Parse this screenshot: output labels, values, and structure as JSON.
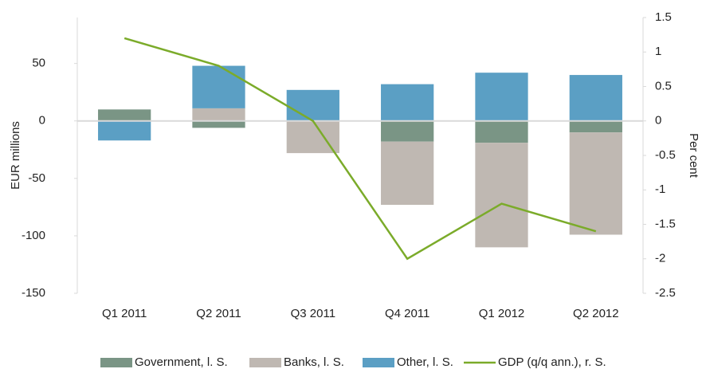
{
  "chart_data": {
    "type": "bar",
    "categories": [
      "Q1 2011",
      "Q2 2011",
      "Q3 2011",
      "Q4 2011",
      "Q1 2012",
      "Q2 2012"
    ],
    "series": [
      {
        "name": "Government, l. S.",
        "color": "#7a9585",
        "values": [
          10,
          -6,
          0,
          -18,
          -19,
          -10
        ]
      },
      {
        "name": "Banks, l. S.",
        "color": "#bfb8b2",
        "values": [
          0,
          11,
          -28,
          -55,
          -91,
          -89
        ]
      },
      {
        "name": "Other, l. S.",
        "color": "#5b9fc4",
        "values": [
          -17,
          37,
          27,
          32,
          42,
          40
        ]
      },
      {
        "name": "GDP (q/q ann.), r. S.",
        "color": "#7bab2a",
        "type": "line",
        "axis": "y2",
        "values": [
          1.2,
          0.8,
          0,
          -2,
          -1.2,
          -1.6
        ]
      }
    ],
    "ylabel": "EUR millions",
    "y2label": "Per cent",
    "ylim": [
      -150,
      90
    ],
    "yticks": [
      -150,
      -100,
      -50,
      0,
      50
    ],
    "y2lim": [
      -2.5,
      1.5
    ],
    "y2ticks": [
      -2.5,
      -2,
      -1.5,
      -1,
      -0.5,
      0,
      0.5,
      1,
      1.5
    ],
    "stacked": true,
    "grid": false,
    "legend": "bottom"
  }
}
